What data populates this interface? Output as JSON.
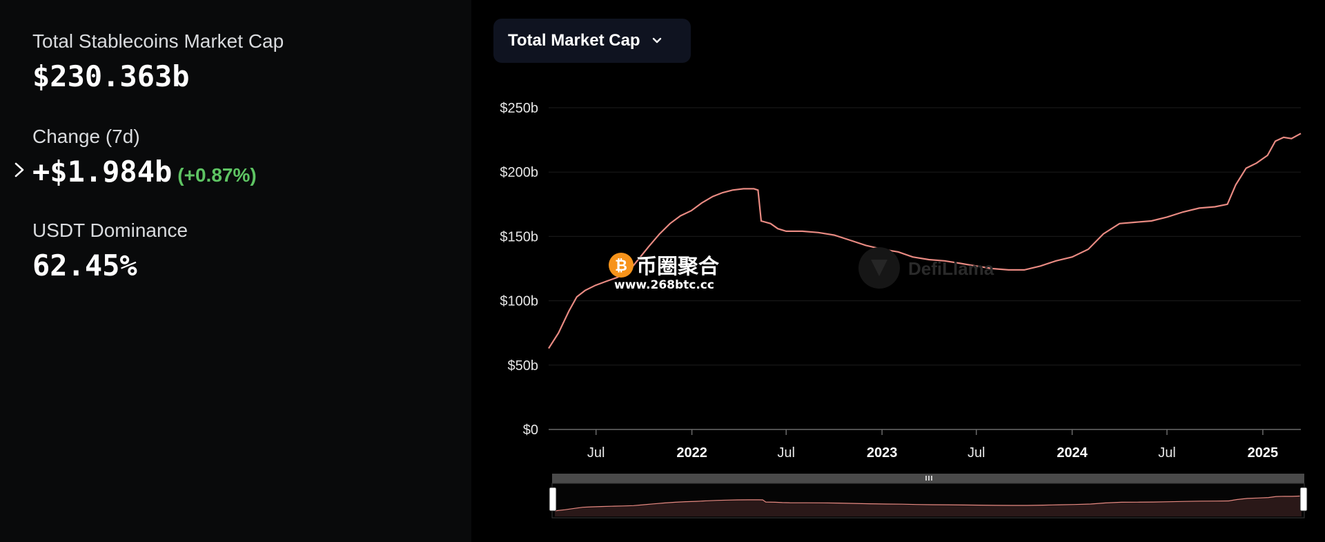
{
  "stats": {
    "market_cap": {
      "label": "Total Stablecoins Market Cap",
      "value": "$230.363b"
    },
    "change": {
      "label": "Change (7d)",
      "value": "+$1.984b",
      "percent": "(+0.87%)"
    },
    "dominance": {
      "label": "USDT Dominance",
      "value": "62.45%"
    }
  },
  "dropdown": {
    "label": "Total Market Cap"
  },
  "watermark": {
    "text": "DefiLlama"
  },
  "badge": {
    "text": "币圈聚合",
    "url": "www.268btc.cc"
  },
  "colors": {
    "line": "#e88a82",
    "positive": "#5ec463",
    "grid": "#1c1c1c",
    "nav_fill": "#2a1818"
  },
  "chart_data": {
    "type": "line",
    "x_range": [
      "2021-04-01",
      "2025-03-15"
    ],
    "ylim": [
      0,
      250
    ],
    "y_ticks": [
      {
        "value": 0,
        "label": "$0"
      },
      {
        "value": 50,
        "label": "$50b"
      },
      {
        "value": 100,
        "label": "$100b"
      },
      {
        "value": 150,
        "label": "$150b"
      },
      {
        "value": 200,
        "label": "$200b"
      },
      {
        "value": 250,
        "label": "$250b"
      }
    ],
    "x_ticks": [
      {
        "date": "2021-07-01",
        "label": "Jul",
        "major": false
      },
      {
        "date": "2022-01-01",
        "label": "2022",
        "major": true
      },
      {
        "date": "2022-07-01",
        "label": "Jul",
        "major": false
      },
      {
        "date": "2023-01-01",
        "label": "2023",
        "major": true
      },
      {
        "date": "2023-07-01",
        "label": "Jul",
        "major": false
      },
      {
        "date": "2024-01-01",
        "label": "2024",
        "major": true
      },
      {
        "date": "2024-07-01",
        "label": "Jul",
        "major": false
      },
      {
        "date": "2025-01-01",
        "label": "2025",
        "major": true
      }
    ],
    "grid": true,
    "series": [
      {
        "points": [
          [
            "2021-04-01",
            63
          ],
          [
            "2021-04-20",
            75
          ],
          [
            "2021-05-10",
            92
          ],
          [
            "2021-05-25",
            103
          ],
          [
            "2021-06-10",
            108
          ],
          [
            "2021-06-30",
            112
          ],
          [
            "2021-07-20",
            115
          ],
          [
            "2021-08-10",
            118
          ],
          [
            "2021-08-31",
            122
          ],
          [
            "2021-09-20",
            132
          ],
          [
            "2021-10-10",
            142
          ],
          [
            "2021-10-31",
            152
          ],
          [
            "2021-11-20",
            160
          ],
          [
            "2021-12-10",
            166
          ],
          [
            "2021-12-31",
            170
          ],
          [
            "2022-01-20",
            176
          ],
          [
            "2022-02-10",
            181
          ],
          [
            "2022-03-01",
            184
          ],
          [
            "2022-03-20",
            186
          ],
          [
            "2022-04-10",
            187
          ],
          [
            "2022-04-30",
            187
          ],
          [
            "2022-05-08",
            186
          ],
          [
            "2022-05-14",
            162
          ],
          [
            "2022-06-01",
            160
          ],
          [
            "2022-06-15",
            156
          ],
          [
            "2022-07-01",
            154
          ],
          [
            "2022-08-01",
            154
          ],
          [
            "2022-09-01",
            153
          ],
          [
            "2022-10-01",
            151
          ],
          [
            "2022-11-01",
            147
          ],
          [
            "2022-12-01",
            143
          ],
          [
            "2023-01-01",
            140
          ],
          [
            "2023-02-01",
            138
          ],
          [
            "2023-03-01",
            134
          ],
          [
            "2023-04-01",
            132
          ],
          [
            "2023-05-01",
            131
          ],
          [
            "2023-06-01",
            129
          ],
          [
            "2023-07-01",
            127
          ],
          [
            "2023-08-01",
            125
          ],
          [
            "2023-09-01",
            124
          ],
          [
            "2023-10-01",
            124
          ],
          [
            "2023-11-01",
            127
          ],
          [
            "2023-12-01",
            131
          ],
          [
            "2024-01-01",
            134
          ],
          [
            "2024-02-01",
            140
          ],
          [
            "2024-03-01",
            152
          ],
          [
            "2024-04-01",
            160
          ],
          [
            "2024-05-01",
            161
          ],
          [
            "2024-06-01",
            162
          ],
          [
            "2024-07-01",
            165
          ],
          [
            "2024-08-01",
            169
          ],
          [
            "2024-09-01",
            172
          ],
          [
            "2024-10-01",
            173
          ],
          [
            "2024-10-25",
            175
          ],
          [
            "2024-11-10",
            190
          ],
          [
            "2024-11-30",
            203
          ],
          [
            "2024-12-20",
            207
          ],
          [
            "2025-01-10",
            213
          ],
          [
            "2025-01-25",
            224
          ],
          [
            "2025-02-10",
            227
          ],
          [
            "2025-02-25",
            226
          ],
          [
            "2025-03-15",
            230
          ]
        ]
      }
    ]
  }
}
